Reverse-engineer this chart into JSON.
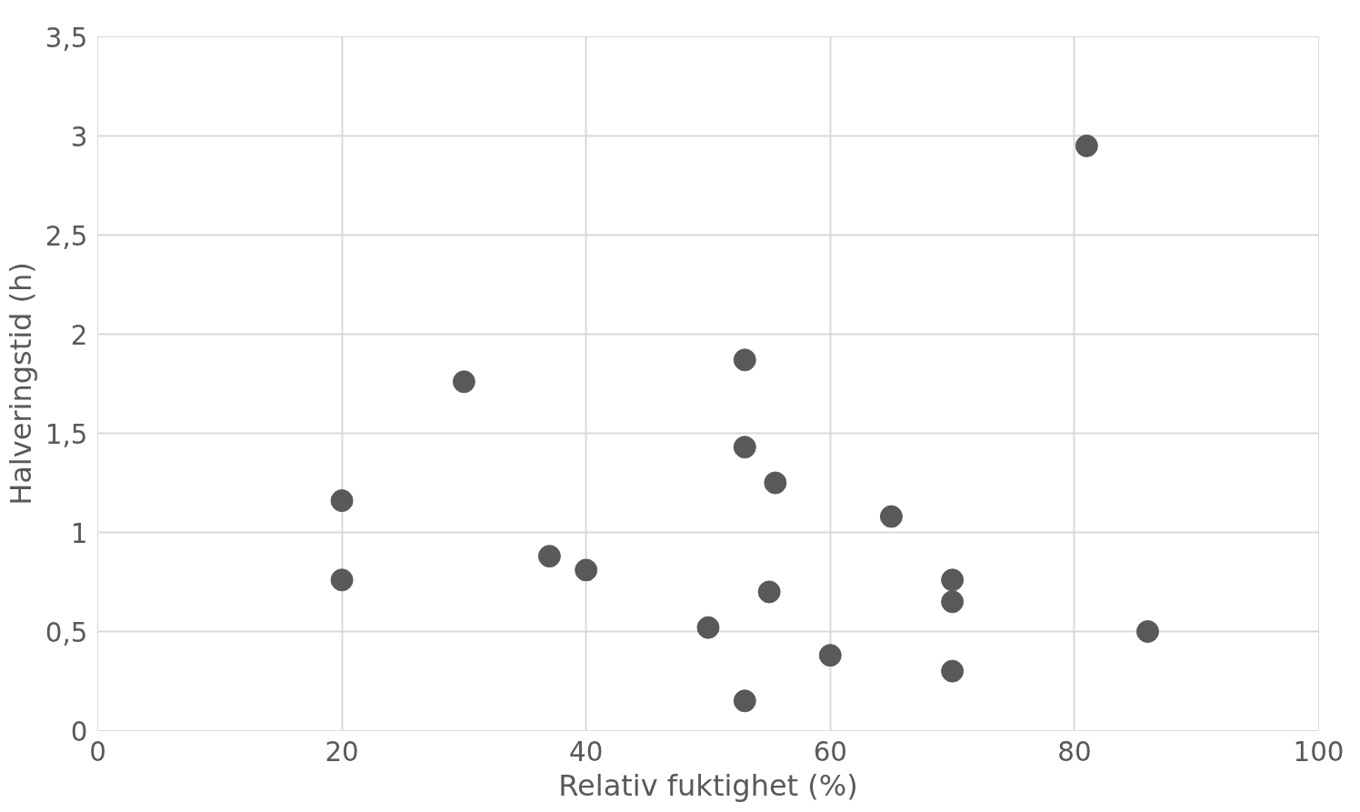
{
  "chart_data": {
    "type": "scatter",
    "xlabel": "Relativ fuktighet (%)",
    "ylabel": "Halveringstid (h)",
    "x": [
      20,
      20,
      30,
      37,
      40,
      53,
      53,
      55.5,
      55,
      50,
      53,
      60,
      65,
      70,
      70,
      70,
      81,
      86
    ],
    "series": [
      {
        "color": "#595959",
        "values": [
          1.16,
          0.76,
          1.76,
          0.88,
          0.81,
          1.87,
          1.43,
          1.25,
          0.7,
          0.52,
          0.15,
          0.38,
          1.08,
          0.76,
          0.65,
          0.3,
          2.95,
          0.5
        ]
      }
    ],
    "xlim": [
      0,
      100
    ],
    "xticks": [
      0,
      20,
      40,
      60,
      80,
      100
    ],
    "ylim": [
      0,
      3.5
    ],
    "yticks": [
      0,
      {
        "value": 0.5,
        "label": "0,5"
      },
      1,
      {
        "value": 1.5,
        "label": "1,5"
      },
      2,
      {
        "value": 2.5,
        "label": "2,5"
      },
      3,
      {
        "value": 3.5,
        "label": "3,5"
      }
    ],
    "grid": true,
    "marker": "circle"
  }
}
